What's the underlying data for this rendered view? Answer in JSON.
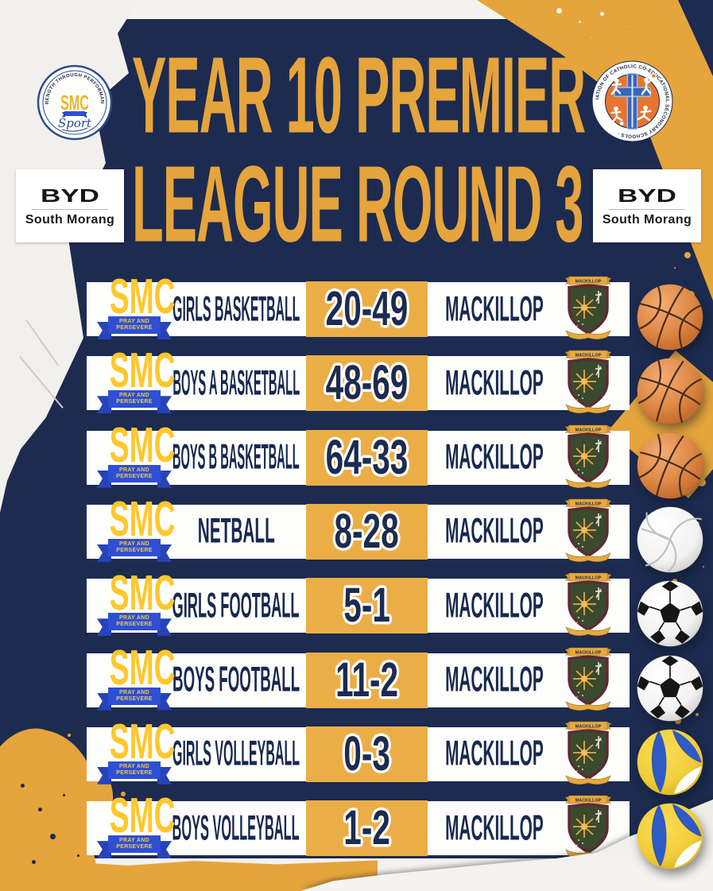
{
  "poster": {
    "title_line1": "YEAR 10 PREMIER",
    "title_line2": "LEAGUE ROUND 3"
  },
  "logos": {
    "smc_sport": {
      "ring_text": "· STRENGTH THROUGH PERFORMANCE ·",
      "acronym": "SMC",
      "script": "Sport"
    },
    "saccss": {
      "ring_text": "SACCSS · SPORTS ASSOCIATION OF CATHOLIC CO-EDUCATIONAL SECONDARY SCHOOLS ·"
    },
    "byd_left": {
      "brand": "BYD",
      "location": "South Morang"
    },
    "byd_right": {
      "brand": "BYD",
      "location": "South Morang"
    }
  },
  "smc_badge": {
    "acronym": "SMC",
    "motto_line1": "PRAY AND",
    "motto_line2": "PERSEVERE"
  },
  "mackillop_crest": {
    "banner": "MACKILLOP"
  },
  "results": [
    {
      "sport": "GIRLS BASKETBALL",
      "score": "20-49",
      "opponent": "MACKILLOP",
      "ball": "basketball"
    },
    {
      "sport": "BOYS A BASKETBALL",
      "score": "48-69",
      "opponent": "MACKILLOP",
      "ball": "basketball"
    },
    {
      "sport": "BOYS B BASKETBALL",
      "score": "64-33",
      "opponent": "MACKILLOP",
      "ball": "basketball"
    },
    {
      "sport": "NETBALL",
      "score": "8-28",
      "opponent": "MACKILLOP",
      "ball": "volleyball-white"
    },
    {
      "sport": "GIRLS FOOTBALL",
      "score": "5-1",
      "opponent": "MACKILLOP",
      "ball": "soccer"
    },
    {
      "sport": "BOYS FOOTBALL",
      "score": "11-2",
      "opponent": "MACKILLOP",
      "ball": "soccer"
    },
    {
      "sport": "GIRLS VOLLEYBALL",
      "score": "0-3",
      "opponent": "MACKILLOP",
      "ball": "volleyball-color"
    },
    {
      "sport": "BOYS VOLLEYBALL",
      "score": "1-2",
      "opponent": "MACKILLOP",
      "ball": "volleyball-color"
    }
  ],
  "colors": {
    "navy": "#1C2B4F",
    "gold": "#E5A43C",
    "score_gold": "#EBAE47",
    "smc_yellow": "#FFC72C",
    "ribbon_blue": "#2E4FD4",
    "saccss_orange": "#E8742F",
    "paper": "#F4F2EE"
  }
}
